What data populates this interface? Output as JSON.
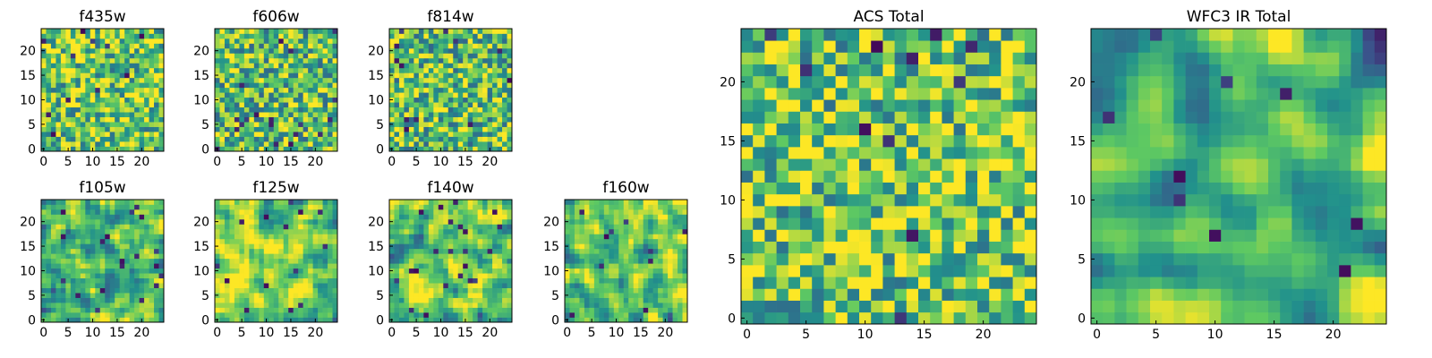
{
  "figure": {
    "title": "",
    "background": "#ffffff"
  },
  "colormap": {
    "name": "viridis",
    "stops": [
      "#440154",
      "#3b528b",
      "#21918c",
      "#5ec962",
      "#fde725"
    ]
  },
  "chart_data": [
    {
      "type": "heatmap",
      "name": "f435w",
      "title": "f435w",
      "grid_size": 25,
      "x_ticks": [
        "0",
        "5",
        "10",
        "15",
        "20"
      ],
      "y_ticks": [
        "0",
        "5",
        "10",
        "15",
        "20"
      ],
      "xlim": [
        0,
        24
      ],
      "ylim": [
        0,
        24
      ],
      "texture": "noisy",
      "mean_level": 0.74,
      "seed": 11
    },
    {
      "type": "heatmap",
      "name": "f606w",
      "title": "f606w",
      "grid_size": 25,
      "x_ticks": [
        "0",
        "5",
        "10",
        "15",
        "20"
      ],
      "y_ticks": [
        "0",
        "5",
        "10",
        "15",
        "20"
      ],
      "xlim": [
        0,
        24
      ],
      "ylim": [
        0,
        24
      ],
      "texture": "noisy",
      "mean_level": 0.7,
      "seed": 23
    },
    {
      "type": "heatmap",
      "name": "f814w",
      "title": "f814w",
      "grid_size": 25,
      "x_ticks": [
        "0",
        "5",
        "10",
        "15",
        "20"
      ],
      "y_ticks": [
        "0",
        "5",
        "10",
        "15",
        "20"
      ],
      "xlim": [
        0,
        24
      ],
      "ylim": [
        0,
        24
      ],
      "texture": "noisy",
      "mean_level": 0.7,
      "seed": 37
    },
    {
      "type": "heatmap",
      "name": "f105w",
      "title": "f105w",
      "grid_size": 25,
      "x_ticks": [
        "0",
        "5",
        "10",
        "15",
        "20"
      ],
      "y_ticks": [
        "0",
        "5",
        "10",
        "15",
        "20"
      ],
      "xlim": [
        0,
        24
      ],
      "ylim": [
        0,
        24
      ],
      "texture": "smooth",
      "mean_level": 0.72,
      "seed": 41
    },
    {
      "type": "heatmap",
      "name": "f125w",
      "title": "f125w",
      "grid_size": 25,
      "x_ticks": [
        "0",
        "5",
        "10",
        "15",
        "20"
      ],
      "y_ticks": [
        "0",
        "5",
        "10",
        "15",
        "20"
      ],
      "xlim": [
        0,
        24
      ],
      "ylim": [
        0,
        24
      ],
      "texture": "smooth",
      "mean_level": 0.76,
      "seed": 53
    },
    {
      "type": "heatmap",
      "name": "f140w",
      "title": "f140w",
      "grid_size": 25,
      "x_ticks": [
        "0",
        "5",
        "10",
        "15",
        "20"
      ],
      "y_ticks": [
        "0",
        "5",
        "10",
        "15",
        "20"
      ],
      "xlim": [
        0,
        24
      ],
      "ylim": [
        0,
        24
      ],
      "texture": "smooth",
      "mean_level": 0.72,
      "seed": 67
    },
    {
      "type": "heatmap",
      "name": "f160w",
      "title": "f160w",
      "grid_size": 25,
      "x_ticks": [
        "0",
        "5",
        "10",
        "15",
        "20"
      ],
      "y_ticks": [
        "0",
        "5",
        "10",
        "15",
        "20"
      ],
      "xlim": [
        0,
        24
      ],
      "ylim": [
        0,
        24
      ],
      "texture": "smooth",
      "mean_level": 0.7,
      "seed": 79
    },
    {
      "type": "heatmap",
      "name": "ACS Total",
      "title": "ACS Total",
      "grid_size": 25,
      "x_ticks": [
        "0",
        "5",
        "10",
        "15",
        "20"
      ],
      "y_ticks": [
        "0",
        "5",
        "10",
        "15",
        "20"
      ],
      "xlim": [
        0,
        24
      ],
      "ylim": [
        0,
        24
      ],
      "texture": "noisy",
      "mean_level": 0.74,
      "seed": 97
    },
    {
      "type": "heatmap",
      "name": "WFC3 IR Total",
      "title": "WFC3 IR Total",
      "grid_size": 25,
      "x_ticks": [
        "0",
        "5",
        "10",
        "15",
        "20"
      ],
      "y_ticks": [
        "0",
        "5",
        "10",
        "15",
        "20"
      ],
      "xlim": [
        0,
        24
      ],
      "ylim": [
        0,
        24
      ],
      "texture": "smooth-centered",
      "mean_level": 0.7,
      "seed": 103
    }
  ]
}
